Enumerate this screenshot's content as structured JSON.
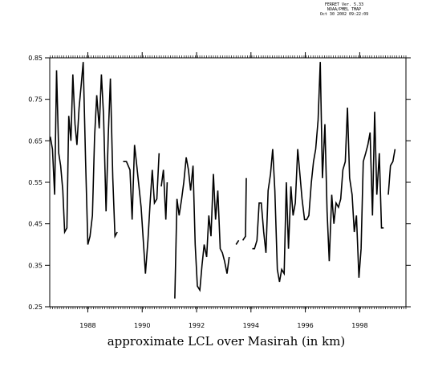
{
  "stamp": {
    "line1": "FERRET Ver. 5.33",
    "line2": "NOAA/PMEL TMAP",
    "line3": "Oct 30 2002 09:22:09"
  },
  "chart_data": {
    "type": "line",
    "title": "approximate LCL over Masirah (in km)",
    "xlim": [
      1986.6,
      1999.7
    ],
    "ylim": [
      0.25,
      0.85
    ],
    "y_ticks": [
      0.25,
      0.35,
      0.45,
      0.55,
      0.65,
      0.75,
      0.85
    ],
    "y_tick_labels": [
      "0.25",
      "0.35",
      "0.45",
      "0.55",
      "0.65",
      "0.75",
      "0.85"
    ],
    "x_labeled_ticks": [
      1988,
      1990,
      1992,
      1994,
      1996,
      1998
    ],
    "x_tick_labels": [
      "1988",
      "1990",
      "1992",
      "1994",
      "1996",
      "1998"
    ],
    "x_minor_tick_step": 0.0833,
    "grid": false,
    "line_color": "#000000",
    "series": [
      {
        "segments": [
          [
            [
              1986.62,
              0.66
            ],
            [
              1986.7,
              0.63
            ],
            [
              1986.78,
              0.52
            ],
            [
              1986.85,
              0.82
            ],
            [
              1986.93,
              0.62
            ],
            [
              1987.0,
              0.59
            ],
            [
              1987.08,
              0.53
            ],
            [
              1987.15,
              0.43
            ],
            [
              1987.23,
              0.44
            ],
            [
              1987.3,
              0.71
            ],
            [
              1987.38,
              0.65
            ],
            [
              1987.45,
              0.81
            ],
            [
              1987.53,
              0.69
            ],
            [
              1987.6,
              0.64
            ],
            [
              1987.68,
              0.73
            ],
            [
              1987.75,
              0.78
            ],
            [
              1987.83,
              0.84
            ],
            [
              1987.92,
              0.6
            ],
            [
              1988.0,
              0.4
            ],
            [
              1988.08,
              0.42
            ],
            [
              1988.17,
              0.47
            ],
            [
              1988.25,
              0.66
            ],
            [
              1988.33,
              0.76
            ],
            [
              1988.42,
              0.68
            ],
            [
              1988.5,
              0.81
            ],
            [
              1988.58,
              0.71
            ],
            [
              1988.67,
              0.48
            ],
            [
              1988.75,
              0.66
            ],
            [
              1988.83,
              0.8
            ],
            [
              1988.92,
              0.56
            ],
            [
              1989.0,
              0.42
            ],
            [
              1989.08,
              0.43
            ]
          ],
          [
            [
              1989.3,
              0.6
            ],
            [
              1989.42,
              0.6
            ],
            [
              1989.55,
              0.58
            ],
            [
              1989.63,
              0.46
            ],
            [
              1989.72,
              0.64
            ],
            [
              1989.8,
              0.59
            ],
            [
              1989.88,
              0.54
            ],
            [
              1989.96,
              0.49
            ],
            [
              1990.04,
              0.41
            ],
            [
              1990.12,
              0.33
            ],
            [
              1990.21,
              0.41
            ],
            [
              1990.29,
              0.5
            ],
            [
              1990.37,
              0.58
            ],
            [
              1990.45,
              0.5
            ],
            [
              1990.54,
              0.51
            ],
            [
              1990.62,
              0.62
            ]
          ],
          [
            [
              1990.7,
              0.54
            ],
            [
              1990.78,
              0.58
            ],
            [
              1990.87,
              0.46
            ],
            [
              1990.92,
              0.55
            ]
          ],
          [
            [
              1991.2,
              0.27
            ],
            [
              1991.28,
              0.51
            ],
            [
              1991.36,
              0.47
            ],
            [
              1991.45,
              0.51
            ],
            [
              1991.53,
              0.55
            ],
            [
              1991.62,
              0.61
            ],
            [
              1991.7,
              0.58
            ],
            [
              1991.78,
              0.53
            ],
            [
              1991.87,
              0.59
            ],
            [
              1991.95,
              0.4
            ],
            [
              1992.03,
              0.3
            ],
            [
              1992.12,
              0.29
            ],
            [
              1992.2,
              0.35
            ],
            [
              1992.28,
              0.4
            ],
            [
              1992.37,
              0.37
            ],
            [
              1992.45,
              0.47
            ],
            [
              1992.53,
              0.42
            ],
            [
              1992.62,
              0.57
            ],
            [
              1992.7,
              0.46
            ],
            [
              1992.78,
              0.53
            ],
            [
              1992.87,
              0.39
            ],
            [
              1992.95,
              0.38
            ],
            [
              1993.03,
              0.36
            ],
            [
              1993.12,
              0.33
            ],
            [
              1993.2,
              0.37
            ]
          ],
          [
            [
              1993.45,
              0.4
            ],
            [
              1993.55,
              0.41
            ]
          ],
          [
            [
              1993.7,
              0.41
            ],
            [
              1993.8,
              0.42
            ],
            [
              1993.83,
              0.56
            ]
          ],
          [
            [
              1994.05,
              0.39
            ],
            [
              1994.13,
              0.39
            ],
            [
              1994.22,
              0.41
            ],
            [
              1994.3,
              0.5
            ],
            [
              1994.38,
              0.5
            ],
            [
              1994.47,
              0.43
            ],
            [
              1994.55,
              0.38
            ],
            [
              1994.63,
              0.53
            ],
            [
              1994.72,
              0.57
            ],
            [
              1994.8,
              0.63
            ],
            [
              1994.88,
              0.53
            ],
            [
              1994.97,
              0.34
            ],
            [
              1995.05,
              0.31
            ],
            [
              1995.13,
              0.34
            ],
            [
              1995.22,
              0.33
            ],
            [
              1995.3,
              0.55
            ],
            [
              1995.38,
              0.39
            ],
            [
              1995.47,
              0.54
            ],
            [
              1995.55,
              0.47
            ],
            [
              1995.63,
              0.5
            ],
            [
              1995.72,
              0.63
            ],
            [
              1995.8,
              0.57
            ],
            [
              1995.88,
              0.51
            ],
            [
              1995.97,
              0.46
            ],
            [
              1996.05,
              0.46
            ],
            [
              1996.13,
              0.47
            ],
            [
              1996.22,
              0.55
            ],
            [
              1996.3,
              0.6
            ],
            [
              1996.38,
              0.63
            ],
            [
              1996.47,
              0.7
            ],
            [
              1996.55,
              0.84
            ],
            [
              1996.63,
              0.56
            ],
            [
              1996.72,
              0.69
            ],
            [
              1996.8,
              0.48
            ],
            [
              1996.88,
              0.36
            ],
            [
              1996.97,
              0.52
            ],
            [
              1997.05,
              0.45
            ],
            [
              1997.13,
              0.5
            ],
            [
              1997.22,
              0.49
            ],
            [
              1997.3,
              0.51
            ],
            [
              1997.38,
              0.58
            ],
            [
              1997.47,
              0.6
            ],
            [
              1997.55,
              0.73
            ],
            [
              1997.63,
              0.56
            ],
            [
              1997.72,
              0.52
            ],
            [
              1997.8,
              0.43
            ],
            [
              1997.88,
              0.47
            ],
            [
              1997.97,
              0.32
            ],
            [
              1998.05,
              0.39
            ],
            [
              1998.13,
              0.6
            ],
            [
              1998.22,
              0.62
            ],
            [
              1998.3,
              0.64
            ],
            [
              1998.38,
              0.67
            ],
            [
              1998.47,
              0.47
            ],
            [
              1998.55,
              0.72
            ],
            [
              1998.63,
              0.52
            ],
            [
              1998.72,
              0.62
            ],
            [
              1998.8,
              0.44
            ],
            [
              1998.88,
              0.44
            ]
          ],
          [
            [
              1999.05,
              0.52
            ],
            [
              1999.13,
              0.59
            ],
            [
              1999.22,
              0.6
            ],
            [
              1999.3,
              0.63
            ]
          ]
        ]
      }
    ]
  }
}
